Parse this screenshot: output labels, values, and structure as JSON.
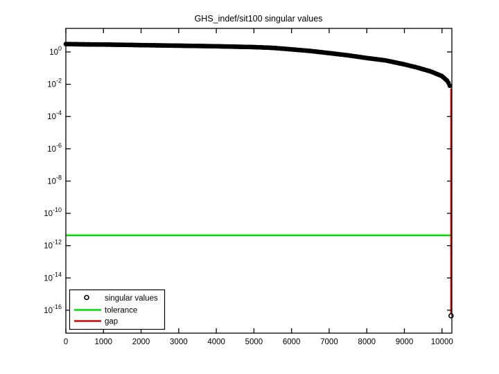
{
  "figure": {
    "background": "#ffffff"
  },
  "chart_data": {
    "type": "scatter",
    "title": "GHS_indef/sit100 singular values",
    "xlabel": "",
    "ylabel": "",
    "grid": false,
    "x_axis": {
      "lim": [
        0,
        10262
      ],
      "ticks": [
        0,
        1000,
        2000,
        3000,
        4000,
        5000,
        6000,
        7000,
        8000,
        9000,
        10000
      ],
      "tick_labels": [
        "0",
        "1000",
        "2000",
        "3000",
        "4000",
        "5000",
        "6000",
        "7000",
        "8000",
        "9000",
        "10000"
      ]
    },
    "y_axis": {
      "scale": "log",
      "lim_exponents": [
        -17.42,
        1.46
      ],
      "tick_exponents": [
        0,
        -2,
        -4,
        -6,
        -8,
        -10,
        -12,
        -14,
        -16
      ],
      "tick_base": "10"
    },
    "series": [
      {
        "name": "singular values",
        "type": "scatter-markers",
        "marker": "circle",
        "color": "#000000",
        "profile_points": [
          [
            0,
            3.1
          ],
          [
            300,
            3.0
          ],
          [
            700,
            2.92
          ],
          [
            1000,
            2.88
          ],
          [
            1500,
            2.78
          ],
          [
            2000,
            2.65
          ],
          [
            2500,
            2.55
          ],
          [
            3000,
            2.45
          ],
          [
            3500,
            2.35
          ],
          [
            4000,
            2.25
          ],
          [
            4500,
            2.12
          ],
          [
            5000,
            2.0
          ],
          [
            5500,
            1.8
          ],
          [
            6000,
            1.45
          ],
          [
            6500,
            1.15
          ],
          [
            7000,
            0.85
          ],
          [
            7500,
            0.62
          ],
          [
            8000,
            0.42
          ],
          [
            8500,
            0.3
          ],
          [
            9000,
            0.17
          ],
          [
            9300,
            0.115
          ],
          [
            9700,
            0.062
          ],
          [
            10000,
            0.032
          ],
          [
            10150,
            0.0155
          ],
          [
            10240,
            0.0055
          ]
        ]
      },
      {
        "name": "tolerance",
        "type": "hline",
        "color": "#00dd00",
        "value": 4.4e-12,
        "x_range": [
          0,
          10240
        ]
      },
      {
        "name": "gap",
        "type": "vline",
        "color": "#d40000",
        "x": 10240,
        "y_range": [
          4.5e-17,
          0.0055
        ]
      }
    ],
    "outlier_point": {
      "x": 10240,
      "sigma": 4.5e-17
    },
    "legend": {
      "position": "southwest",
      "items": [
        {
          "label": "singular values",
          "marker": "circle",
          "color": "#000000"
        },
        {
          "label": "tolerance",
          "marker": "line",
          "color": "#00dd00"
        },
        {
          "label": "gap",
          "marker": "line",
          "color": "#d40000"
        }
      ]
    }
  }
}
